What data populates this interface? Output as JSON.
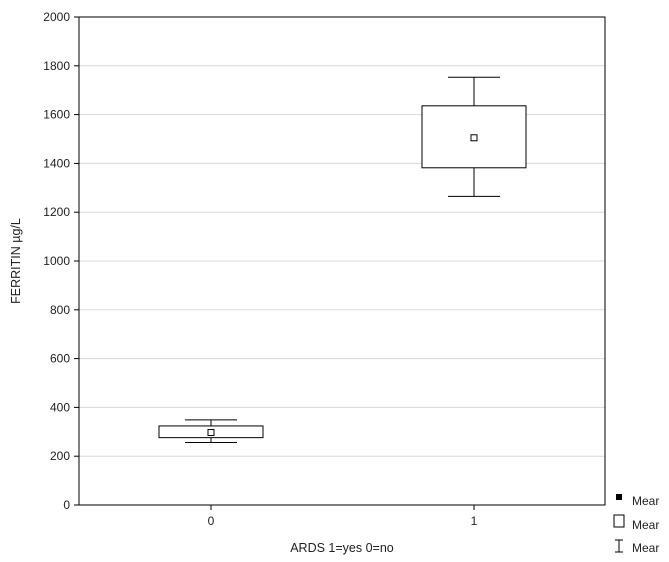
{
  "chart_data": {
    "type": "box",
    "xlabel": "ARDS 1=yes 0=no",
    "ylabel": "FERRITIN µg/L",
    "ylim": [
      0,
      2000
    ],
    "yticks": [
      0,
      200,
      400,
      600,
      800,
      1000,
      1200,
      1400,
      1600,
      1800,
      2000
    ],
    "grid": true,
    "categories": [
      "0",
      "1"
    ],
    "groups": [
      {
        "category": "0",
        "mean": 297,
        "box_low": 276,
        "box_high": 324,
        "whisker_low": 256,
        "whisker_high": 349
      },
      {
        "category": "1",
        "mean": 1505,
        "box_low": 1382,
        "box_high": 1636,
        "whisker_low": 1265,
        "whisker_high": 1753
      }
    ],
    "legend": {
      "placement": "bottom-right",
      "entries": [
        {
          "symbol": "filled-square",
          "label": "Mear"
        },
        {
          "symbol": "open-box",
          "label": "Mear"
        },
        {
          "symbol": "whisker",
          "label": "Mear"
        }
      ]
    },
    "colors": {
      "line": "#000000",
      "grid": "#d8d8d8",
      "background": "#ffffff"
    }
  }
}
